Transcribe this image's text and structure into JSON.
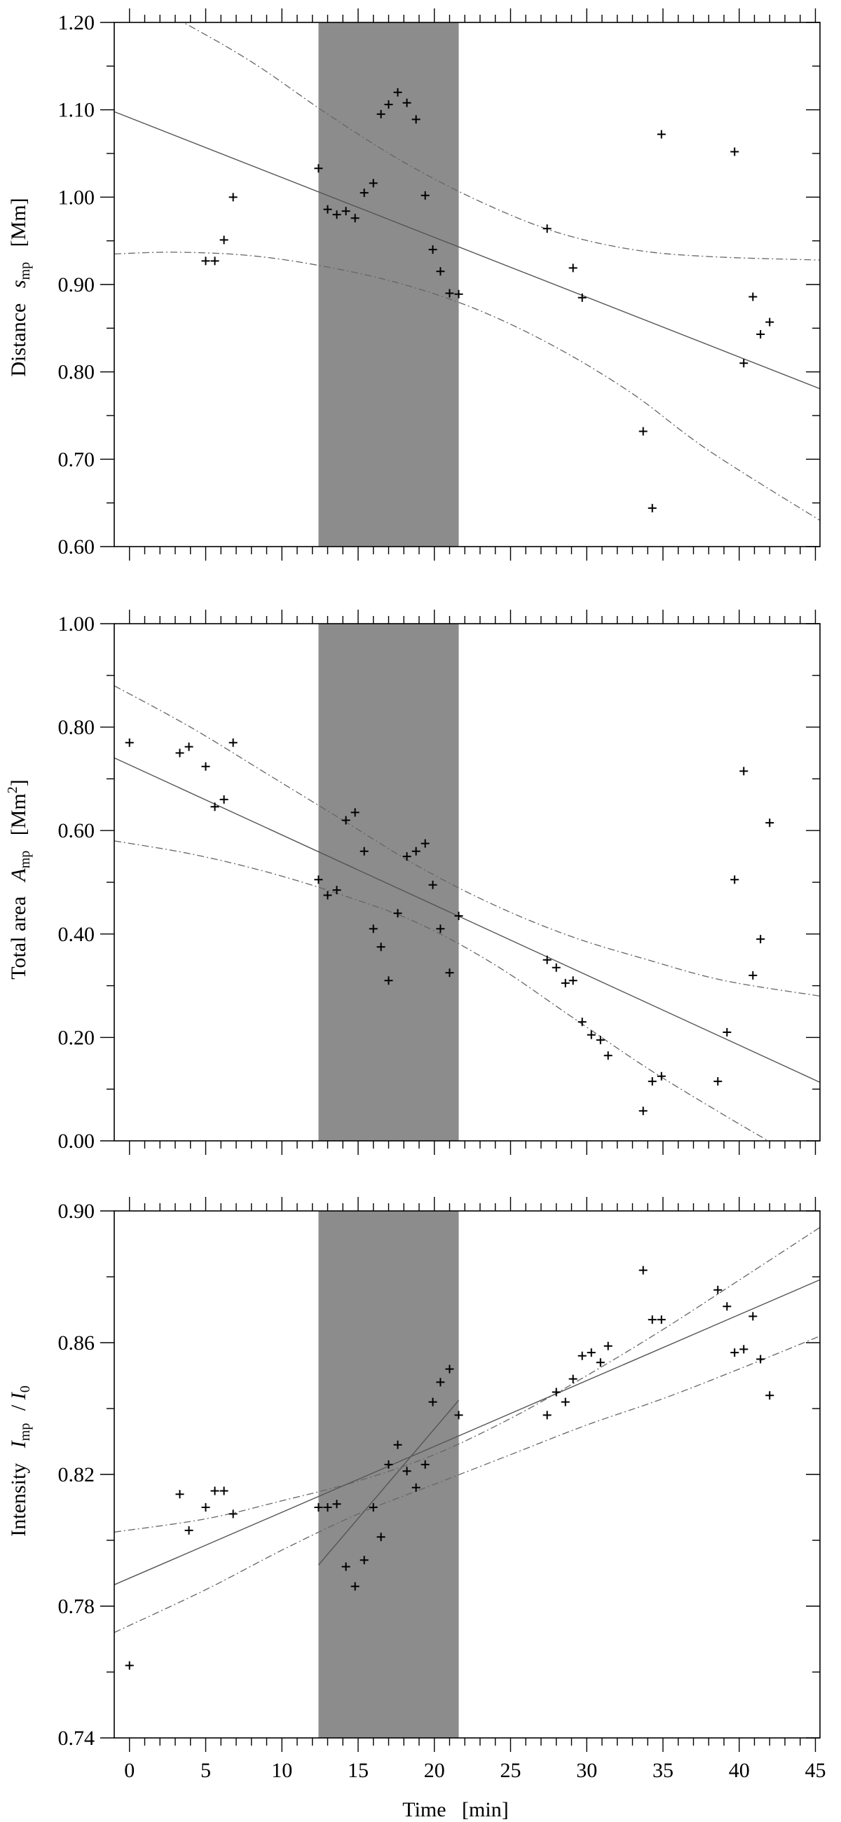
{
  "chart_data": [
    {
      "type": "scatter",
      "title": "",
      "xlabel": "",
      "ylabel_main": "Distance",
      "ylabel_symbol": "s",
      "ylabel_sub": "mp",
      "ylabel_sup": "",
      "ylabel_unit": "[Mm]",
      "xlim": [
        -1,
        45.3
      ],
      "ylim": [
        0.6,
        1.2
      ],
      "yticks": [
        "0.60",
        "0.70",
        "0.80",
        "0.90",
        "1.00",
        "1.10",
        "1.20"
      ],
      "shaded_interval": [
        12.4,
        21.6
      ],
      "fit_line": [
        1.091,
        -0.00685
      ],
      "confidence_upper": [
        [
          -1,
          1.24
        ],
        [
          3,
          1.205
        ],
        [
          8,
          1.155
        ],
        [
          13,
          1.095
        ],
        [
          18,
          1.04
        ],
        [
          23,
          0.995
        ],
        [
          28,
          0.96
        ],
        [
          33,
          0.94
        ],
        [
          38,
          0.932
        ],
        [
          45.3,
          0.928
        ]
      ],
      "confidence_lower": [
        [
          -1,
          0.935
        ],
        [
          3,
          0.937
        ],
        [
          8,
          0.933
        ],
        [
          13,
          0.92
        ],
        [
          18,
          0.9
        ],
        [
          23,
          0.87
        ],
        [
          28,
          0.828
        ],
        [
          33,
          0.775
        ],
        [
          38,
          0.71
        ],
        [
          45.3,
          0.63
        ]
      ],
      "points": [
        {
          "x": 5.0,
          "y": 0.927
        },
        {
          "x": 5.6,
          "y": 0.927
        },
        {
          "x": 6.2,
          "y": 0.951
        },
        {
          "x": 6.8,
          "y": 1.0
        },
        {
          "x": 12.4,
          "y": 1.033
        },
        {
          "x": 13.0,
          "y": 0.986
        },
        {
          "x": 13.6,
          "y": 0.98
        },
        {
          "x": 14.2,
          "y": 0.984
        },
        {
          "x": 14.8,
          "y": 0.976
        },
        {
          "x": 15.4,
          "y": 1.005
        },
        {
          "x": 16.0,
          "y": 1.016
        },
        {
          "x": 16.5,
          "y": 1.095
        },
        {
          "x": 17.0,
          "y": 1.106
        },
        {
          "x": 17.6,
          "y": 1.12
        },
        {
          "x": 18.2,
          "y": 1.108
        },
        {
          "x": 18.8,
          "y": 1.089
        },
        {
          "x": 19.4,
          "y": 1.002
        },
        {
          "x": 19.9,
          "y": 0.94
        },
        {
          "x": 20.4,
          "y": 0.915
        },
        {
          "x": 21.0,
          "y": 0.89
        },
        {
          "x": 21.6,
          "y": 0.889
        },
        {
          "x": 27.4,
          "y": 0.964
        },
        {
          "x": 29.1,
          "y": 0.919
        },
        {
          "x": 29.7,
          "y": 0.885
        },
        {
          "x": 33.7,
          "y": 0.732
        },
        {
          "x": 34.3,
          "y": 0.644
        },
        {
          "x": 34.9,
          "y": 1.072
        },
        {
          "x": 39.7,
          "y": 1.052
        },
        {
          "x": 40.3,
          "y": 0.81
        },
        {
          "x": 40.9,
          "y": 0.886
        },
        {
          "x": 41.4,
          "y": 0.843
        },
        {
          "x": 42.0,
          "y": 0.857
        }
      ]
    },
    {
      "type": "scatter",
      "title": "",
      "xlabel": "",
      "ylabel_main": "Total area",
      "ylabel_symbol": "A",
      "ylabel_sub": "mp",
      "ylabel_sup": "2",
      "ylabel_unit_pre": "[Mm",
      "ylabel_unit_post": "]",
      "xlim": [
        -1,
        45.3
      ],
      "ylim": [
        0.0,
        1.0
      ],
      "yticks": [
        "0.00",
        "0.20",
        "0.40",
        "0.60",
        "0.80",
        "1.00"
      ],
      "shaded_interval": [
        12.4,
        21.6
      ],
      "fit_line": [
        0.727,
        -0.01355
      ],
      "confidence_upper": [
        [
          -1,
          0.88
        ],
        [
          4,
          0.8
        ],
        [
          9,
          0.71
        ],
        [
          14,
          0.62
        ],
        [
          19,
          0.53
        ],
        [
          24,
          0.455
        ],
        [
          29,
          0.395
        ],
        [
          34,
          0.35
        ],
        [
          39,
          0.31
        ],
        [
          45.3,
          0.28
        ]
      ],
      "confidence_lower": [
        [
          -1,
          0.58
        ],
        [
          4,
          0.555
        ],
        [
          9,
          0.52
        ],
        [
          14,
          0.475
        ],
        [
          19,
          0.42
        ],
        [
          24,
          0.34
        ],
        [
          29,
          0.24
        ],
        [
          34,
          0.14
        ],
        [
          39,
          0.05
        ],
        [
          42.5,
          -0.01
        ]
      ],
      "points": [
        {
          "x": 0.0,
          "y": 0.77
        },
        {
          "x": 3.3,
          "y": 0.75
        },
        {
          "x": 3.9,
          "y": 0.762
        },
        {
          "x": 5.0,
          "y": 0.724
        },
        {
          "x": 5.6,
          "y": 0.646
        },
        {
          "x": 6.2,
          "y": 0.66
        },
        {
          "x": 6.8,
          "y": 0.77
        },
        {
          "x": 12.4,
          "y": 0.505
        },
        {
          "x": 13.0,
          "y": 0.475
        },
        {
          "x": 13.6,
          "y": 0.485
        },
        {
          "x": 14.2,
          "y": 0.62
        },
        {
          "x": 14.8,
          "y": 0.635
        },
        {
          "x": 15.4,
          "y": 0.56
        },
        {
          "x": 16.0,
          "y": 0.41
        },
        {
          "x": 16.5,
          "y": 0.375
        },
        {
          "x": 17.0,
          "y": 0.31
        },
        {
          "x": 17.6,
          "y": 0.44
        },
        {
          "x": 18.2,
          "y": 0.55
        },
        {
          "x": 18.8,
          "y": 0.56
        },
        {
          "x": 19.4,
          "y": 0.575
        },
        {
          "x": 19.9,
          "y": 0.495
        },
        {
          "x": 20.4,
          "y": 0.41
        },
        {
          "x": 21.0,
          "y": 0.325
        },
        {
          "x": 21.6,
          "y": 0.435
        },
        {
          "x": 27.4,
          "y": 0.35
        },
        {
          "x": 28.0,
          "y": 0.335
        },
        {
          "x": 28.6,
          "y": 0.305
        },
        {
          "x": 29.1,
          "y": 0.31
        },
        {
          "x": 29.7,
          "y": 0.23
        },
        {
          "x": 30.3,
          "y": 0.205
        },
        {
          "x": 30.9,
          "y": 0.195
        },
        {
          "x": 31.4,
          "y": 0.165
        },
        {
          "x": 33.7,
          "y": 0.058
        },
        {
          "x": 34.3,
          "y": 0.115
        },
        {
          "x": 34.9,
          "y": 0.125
        },
        {
          "x": 38.6,
          "y": 0.115
        },
        {
          "x": 39.2,
          "y": 0.21
        },
        {
          "x": 39.7,
          "y": 0.505
        },
        {
          "x": 40.3,
          "y": 0.715
        },
        {
          "x": 40.9,
          "y": 0.32
        },
        {
          "x": 41.4,
          "y": 0.39
        },
        {
          "x": 42.0,
          "y": 0.615
        }
      ]
    },
    {
      "type": "scatter",
      "title": "",
      "xlabel": "Time   [min]",
      "ylabel_main": "Intensity",
      "ylabel_symbol": "I",
      "ylabel_sub": "mp",
      "ylabel_sup": "",
      "ylabel_unit_pre": "/ ",
      "ylabel_unit_symbol": "I",
      "ylabel_unit_sub": "0",
      "xlim": [
        -1,
        45.3
      ],
      "ylim": [
        0.74,
        0.9
      ],
      "yticks": [
        "0.74",
        "0.78",
        "0.82",
        "0.86",
        "0.90"
      ],
      "xticks": [
        "0",
        "5",
        "10",
        "15",
        "20",
        "25",
        "30",
        "35",
        "40",
        "45"
      ],
      "shaded_interval": [
        12.4,
        21.6
      ],
      "fit_line": [
        0.7885,
        0.002
      ],
      "secondary_fit": [
        [
          12.4,
          0.7925
        ],
        [
          21.6,
          0.8425
        ]
      ],
      "confidence_upper": [
        [
          -1,
          0.8025
        ],
        [
          5,
          0.8065
        ],
        [
          10,
          0.812
        ],
        [
          15,
          0.818
        ],
        [
          20,
          0.826
        ],
        [
          25,
          0.837
        ],
        [
          30,
          0.85
        ],
        [
          35,
          0.864
        ],
        [
          40,
          0.879
        ],
        [
          45.3,
          0.895
        ]
      ],
      "confidence_lower": [
        [
          -1,
          0.772
        ],
        [
          5,
          0.785
        ],
        [
          10,
          0.797
        ],
        [
          15,
          0.808
        ],
        [
          20,
          0.817
        ],
        [
          25,
          0.826
        ],
        [
          30,
          0.835
        ],
        [
          35,
          0.843
        ],
        [
          40,
          0.852
        ],
        [
          45.3,
          0.862
        ]
      ],
      "points": [
        {
          "x": 0.0,
          "y": 0.762
        },
        {
          "x": 3.3,
          "y": 0.814
        },
        {
          "x": 3.9,
          "y": 0.803
        },
        {
          "x": 5.0,
          "y": 0.81
        },
        {
          "x": 5.6,
          "y": 0.815
        },
        {
          "x": 6.2,
          "y": 0.815
        },
        {
          "x": 6.8,
          "y": 0.808
        },
        {
          "x": 12.4,
          "y": 0.81
        },
        {
          "x": 13.0,
          "y": 0.81
        },
        {
          "x": 13.6,
          "y": 0.811
        },
        {
          "x": 14.2,
          "y": 0.792
        },
        {
          "x": 14.8,
          "y": 0.786
        },
        {
          "x": 15.4,
          "y": 0.794
        },
        {
          "x": 16.0,
          "y": 0.81
        },
        {
          "x": 16.5,
          "y": 0.801
        },
        {
          "x": 17.0,
          "y": 0.823
        },
        {
          "x": 17.6,
          "y": 0.829
        },
        {
          "x": 18.2,
          "y": 0.821
        },
        {
          "x": 18.8,
          "y": 0.816
        },
        {
          "x": 19.4,
          "y": 0.823
        },
        {
          "x": 19.9,
          "y": 0.842
        },
        {
          "x": 20.4,
          "y": 0.848
        },
        {
          "x": 21.0,
          "y": 0.852
        },
        {
          "x": 21.6,
          "y": 0.838
        },
        {
          "x": 27.4,
          "y": 0.838
        },
        {
          "x": 28.0,
          "y": 0.845
        },
        {
          "x": 28.6,
          "y": 0.842
        },
        {
          "x": 29.1,
          "y": 0.849
        },
        {
          "x": 29.7,
          "y": 0.856
        },
        {
          "x": 30.3,
          "y": 0.857
        },
        {
          "x": 30.9,
          "y": 0.854
        },
        {
          "x": 31.4,
          "y": 0.859
        },
        {
          "x": 33.7,
          "y": 0.882
        },
        {
          "x": 34.3,
          "y": 0.867
        },
        {
          "x": 34.9,
          "y": 0.867
        },
        {
          "x": 38.6,
          "y": 0.876
        },
        {
          "x": 39.2,
          "y": 0.871
        },
        {
          "x": 39.7,
          "y": 0.857
        },
        {
          "x": 40.3,
          "y": 0.858
        },
        {
          "x": 40.9,
          "y": 0.868
        },
        {
          "x": 41.4,
          "y": 0.855
        },
        {
          "x": 42.0,
          "y": 0.844
        }
      ]
    }
  ]
}
